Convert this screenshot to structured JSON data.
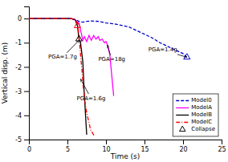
{
  "chart_data": {
    "type": "line",
    "x_label": "Time (s)",
    "y_label": "Vertical disp. (m)",
    "xlim": [
      0,
      25
    ],
    "ylim": [
      -5.0,
      0.5
    ],
    "xticks": [
      0,
      5,
      10,
      15,
      20,
      25
    ],
    "yticks": [
      0,
      -1,
      -2,
      -3,
      -4,
      -5
    ],
    "legend": "lower right",
    "series": [
      {
        "name": "Model0",
        "color": "#0000CC",
        "line_style": "dashed",
        "x": [
          0,
          5.0,
          5.5,
          6.0,
          6.3,
          6.5,
          7.0,
          7.5,
          8.0,
          9.0,
          10.0,
          11.0,
          12.0,
          13.0,
          14.0,
          15.0,
          16.0,
          17.0,
          18.0,
          19.0,
          20.0,
          20.5
        ],
        "values": [
          0.0,
          0.0,
          -0.02,
          -0.05,
          -0.08,
          -0.12,
          -0.15,
          -0.12,
          -0.1,
          -0.12,
          -0.18,
          -0.22,
          -0.28,
          -0.35,
          -0.5,
          -0.65,
          -0.8,
          -1.0,
          -1.15,
          -1.3,
          -1.45,
          -1.6
        ]
      },
      {
        "name": "ModelA",
        "color": "#FF00FF",
        "line_style": "solid",
        "x": [
          0,
          5.5,
          6.0,
          6.5,
          7.0,
          7.2,
          7.5,
          7.8,
          8.1,
          8.4,
          8.7,
          9.0,
          9.2,
          9.5,
          9.8,
          10.0,
          10.2,
          10.5,
          11.0
        ],
        "values": [
          0.0,
          0.0,
          -0.05,
          -0.2,
          -0.9,
          -0.75,
          -0.95,
          -0.7,
          -0.9,
          -0.7,
          -0.85,
          -0.75,
          -0.9,
          -0.85,
          -1.0,
          -0.95,
          -1.1,
          -1.5,
          -3.2
        ]
      },
      {
        "name": "ModelB",
        "color": "#000000",
        "line_style": "solid",
        "x": [
          0,
          5.5,
          6.0,
          6.3,
          6.5,
          6.7,
          7.0,
          7.2,
          7.5
        ],
        "values": [
          0.0,
          0.0,
          -0.05,
          -0.3,
          -0.85,
          -1.0,
          -1.8,
          -3.2,
          -4.8
        ]
      },
      {
        "name": "ModelC",
        "color": "#FF0000",
        "line_style": "dashdot",
        "x": [
          0,
          5.5,
          6.0,
          6.3,
          6.5,
          6.7,
          6.9,
          7.1,
          7.3,
          7.5,
          7.8,
          8.0,
          8.5
        ],
        "values": [
          0.0,
          0.0,
          -0.05,
          -0.2,
          -0.7,
          -1.5,
          -2.2,
          -3.0,
          -3.5,
          -3.9,
          -4.3,
          -4.6,
          -4.85
        ]
      },
      {
        "name": "Collapse",
        "type": "scatter",
        "marker": "triangle",
        "color": "#000000",
        "colors": [
          "#000000",
          "#FF0000",
          "#0000CC"
        ],
        "x": [
          6.5,
          6.3,
          20.5
        ],
        "values": [
          -0.85,
          -0.3,
          -1.6
        ]
      }
    ],
    "annotations": [
      {
        "text": "PGA=1.7g",
        "xy": [
          6.5,
          -0.9
        ],
        "xytext": [
          2.5,
          -1.6
        ],
        "color": "black"
      },
      {
        "text": "PGA=1.6g",
        "xy": [
          6.7,
          -2.5
        ],
        "xytext": [
          6.2,
          -3.3
        ],
        "color": "black"
      },
      {
        "text": "PGA=18g",
        "xy": [
          10.2,
          -1.1
        ],
        "xytext": [
          9.0,
          -1.7
        ],
        "color": "black"
      },
      {
        "text": "PGA=1.4g",
        "xy": [
          20.5,
          -1.6
        ],
        "xytext": [
          15.5,
          -1.3
        ],
        "color": "black"
      }
    ]
  }
}
